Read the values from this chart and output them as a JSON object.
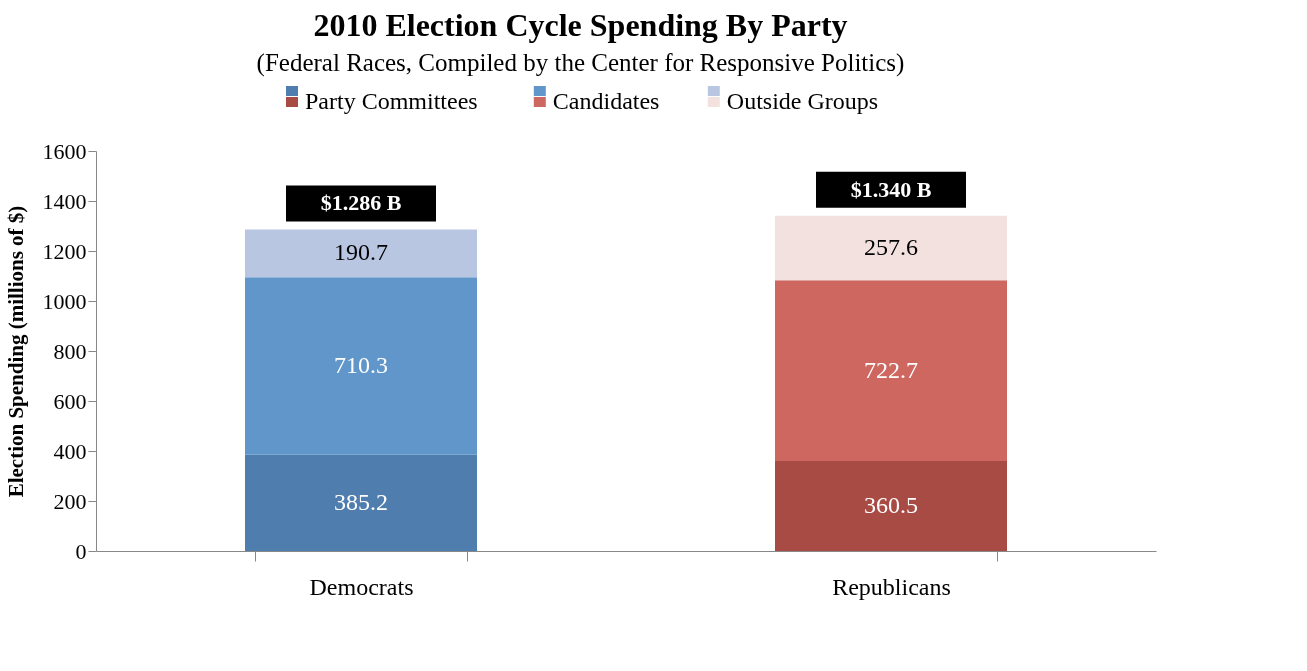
{
  "chart_data": {
    "type": "bar",
    "title": "2010 Election Cycle Spending By Party",
    "subtitle": "(Federal Races, Compiled by the Center for Responsive Politics)",
    "ylabel": "Election Spending  (millions of $)",
    "categories": [
      "Democrats",
      "Republicans"
    ],
    "stacked": true,
    "series": [
      {
        "name": "Party Committees",
        "colors": [
          "#4f7dae",
          "#a84b45"
        ],
        "values": [
          385.2,
          360.5
        ]
      },
      {
        "name": "Candidates",
        "colors": [
          "#6096ca",
          "#cd675f"
        ],
        "values": [
          710.3,
          722.7
        ]
      },
      {
        "name": "Outside Groups",
        "colors": [
          "#b9c6e1",
          "#f3e1df"
        ],
        "values": [
          190.7,
          257.6
        ]
      }
    ],
    "data_labels": true,
    "totals": [
      "$1.286 B",
      "$1.340 B"
    ],
    "ylim": [
      0,
      1600
    ],
    "yticks": [
      0,
      200,
      400,
      600,
      800,
      1000,
      1200,
      1400,
      1600
    ],
    "grid": false,
    "legend": "top"
  }
}
